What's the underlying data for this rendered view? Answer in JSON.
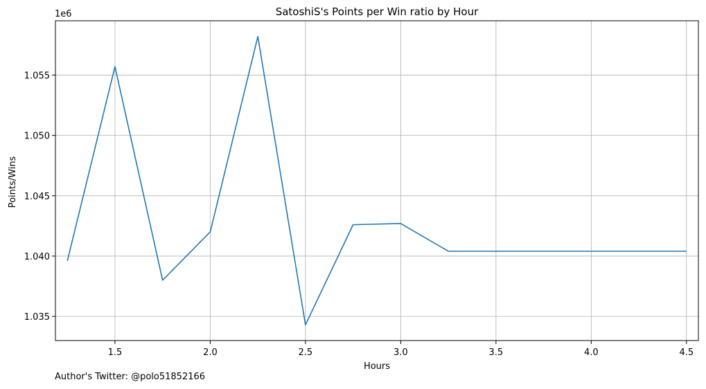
{
  "chart_data": {
    "type": "line",
    "title": "SatoshiS's Points per Win ratio by Hour",
    "xlabel": "Hours",
    "ylabel": "Points/Wins",
    "y_offset_label": "1e6",
    "xlim": [
      1.1875,
      4.5625
    ],
    "ylim": [
      1033000,
      1059500
    ],
    "x_ticks": [
      1.5,
      2.0,
      2.5,
      3.0,
      3.5,
      4.0,
      4.5
    ],
    "x_tick_labels": [
      "1.5",
      "2.0",
      "2.5",
      "3.0",
      "3.5",
      "4.0",
      "4.5"
    ],
    "y_ticks": [
      1035000,
      1040000,
      1045000,
      1050000,
      1055000
    ],
    "y_tick_labels": [
      "1.035",
      "1.040",
      "1.045",
      "1.050",
      "1.055"
    ],
    "grid": true,
    "line_color": "#1f77b4",
    "series": [
      {
        "x": [
          1.25,
          1.5,
          1.75,
          2.0,
          2.25,
          2.5,
          2.75,
          3.0,
          3.25,
          3.5,
          3.75,
          4.0,
          4.25,
          4.5
        ],
        "values": [
          1039600,
          1055700,
          1038000,
          1042000,
          1058200,
          1034300,
          1042600,
          1042700,
          1040400,
          1040400,
          1040400,
          1040400,
          1040400,
          1040400
        ]
      }
    ]
  },
  "footer_text": "Author's Twitter: @polo51852166"
}
